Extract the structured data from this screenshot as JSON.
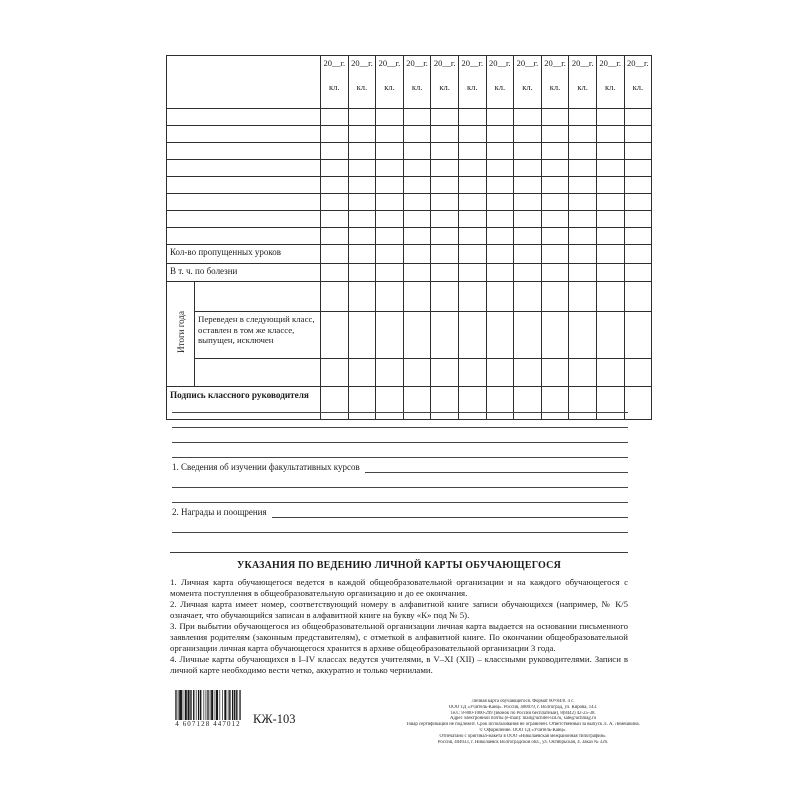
{
  "table": {
    "year_label": "20__г.",
    "class_label": "кл.",
    "num_year_columns": 12,
    "num_subject_rows": 8,
    "rows": {
      "missed_lessons": "Кол-во пропущенных уроков",
      "due_illness": "В т. ч. по болезни",
      "year_results_group": "Итоги года",
      "transferred": "Переведен в следующий класс, оставлен в том же классе, выпущен, исключен",
      "teacher_signature": "Подпись классного руководителя"
    }
  },
  "sections": [
    {
      "label": "1. Сведения об изучении факультативных курсов"
    },
    {
      "label": "2. Награды и поощрения"
    }
  ],
  "instructions": {
    "title": "УКАЗАНИЯ ПО ВЕДЕНИЮ ЛИЧНОЙ КАРТЫ ОБУЧАЮЩЕГОСЯ",
    "paragraphs": [
      "1. Личная карта обучающегося ведется в каждой общеобразовательной организации и на каждого обучающегося с момента поступления в общеобразовательную организацию и до ее окончания.",
      "2. Личная карта имеет номер, соответствующий номеру в алфавитной книге записи обучающихся (например, № К/5 означает, что обучающийся записан в алфавитной книге на букву «К» под № 5).",
      "3. При выбытии обучающегося из общеобразовательной организации личная карта выдается на основании письменного заявления родителям (законным представителям), с отметкой в алфавитной книге. По окончании общеобразовательной организации личная карта обучающегося хранится в архиве общеобразовательной организации 3 года.",
      "4. Личные карты обучающихся в I–IV классах ведутся учителями, в V–XI (XII) – классными руководителями. Записи в личной карте необходимо вести четко, аккуратно и только чернилами."
    ]
  },
  "footer": {
    "barcode_digits": "4 607128 447012",
    "form_code": "КЖ-103",
    "imprint_lines": [
      "Личная карта обучающегося. Формат 60×84/8. 4 с.",
      "ООО ТД «Учитель-Канц». Россия, 400079, г. Волгоград, ул. Кирова, 143.",
      "Тел.: 8-800-1000-299 (звонок по России бесплатный), 8(8442) 42-25-38.",
      "Адрес электронной почты (e-mail): mail@uchitel-izd.ru, sale@uchmag.ru",
      "Товар сертификации не подлежит. Срок использования не ограничен. Ответственный за выпуск Л. А. Лемешкина.",
      "© Оформление. ООО ТД «Учитель-Канц».",
      "Отпечатано с оригинал-макета в ООО «Николаевская межрайонная типография».",
      "Россия, 404033, г. Николаевск Волгоградской обл., ул. Октябрьская, 4. Заказ № 326."
    ]
  }
}
